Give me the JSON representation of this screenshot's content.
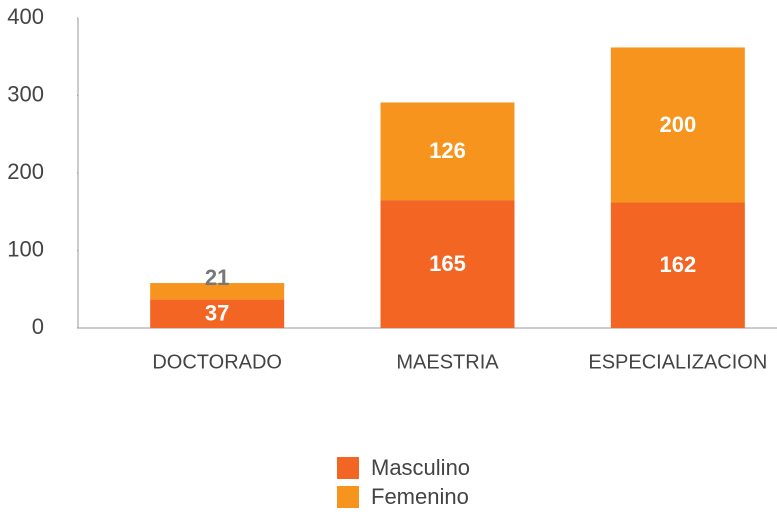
{
  "chart_data": {
    "type": "stacked_bar",
    "categories": [
      "DOCTORADO",
      "MAESTRIA",
      "ESPECIALIZACION"
    ],
    "series": [
      {
        "name": "Masculino",
        "color": "#f26522",
        "values": [
          37,
          165,
          162
        ]
      },
      {
        "name": "Femenino",
        "color": "#f7941d",
        "values": [
          21,
          126,
          200
        ]
      }
    ],
    "ylim": [
      0,
      400
    ],
    "yticks": [
      0,
      100,
      200,
      300,
      400
    ],
    "grid": false
  }
}
